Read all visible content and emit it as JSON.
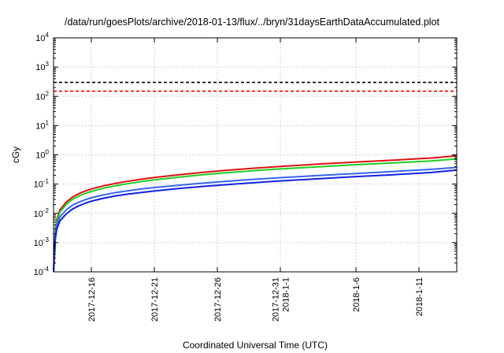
{
  "chart_data": {
    "type": "line",
    "title": "/data/run/goesPlots/archive/2018-01-13/flux/../bryn/31daysEarthDataAccumulated.plot",
    "xlabel": "Coordinated Universal Time (UTC)",
    "ylabel": "cGy",
    "yscale": "log",
    "ylim": [
      0.0001,
      10000
    ],
    "xlim": [
      "2017-12-13",
      "2018-01-14"
    ],
    "grid": true,
    "y_ticks": [
      {
        "base": "10",
        "exp": "-4",
        "value": 0.0001
      },
      {
        "base": "10",
        "exp": "-3",
        "value": 0.001
      },
      {
        "base": "10",
        "exp": "-2",
        "value": 0.01
      },
      {
        "base": "10",
        "exp": "-1",
        "value": 0.1
      },
      {
        "base": "10",
        "exp": "0",
        "value": 1
      },
      {
        "base": "10",
        "exp": "1",
        "value": 10
      },
      {
        "base": "10",
        "exp": "2",
        "value": 100
      },
      {
        "base": "10",
        "exp": "3",
        "value": 1000
      },
      {
        "base": "10",
        "exp": "4",
        "value": 10000
      }
    ],
    "x_ticks": [
      {
        "date": "2017-12-16",
        "labels": [
          "2017-12-16"
        ]
      },
      {
        "date": "2017-12-21",
        "labels": [
          "2017-12-21"
        ]
      },
      {
        "date": "2017-12-26",
        "labels": [
          "2017-12-26"
        ]
      },
      {
        "date": "2017-12-31",
        "labels": [
          "2017-12-31",
          "2018-1-1"
        ]
      },
      {
        "date": "2018-01-06",
        "labels": [
          "2018-1-6"
        ]
      },
      {
        "date": "2018-01-11",
        "labels": [
          "2018-1-11"
        ]
      }
    ],
    "reference_lines": [
      {
        "y": 300,
        "color": "#000000",
        "style": "dashed"
      },
      {
        "y": 150,
        "color": "#ff0000",
        "style": "dashed"
      }
    ],
    "series": [
      {
        "color": "#dd1111",
        "x": [
          "2017-12-13 00:00",
          "2017-12-13 03:00",
          "2017-12-13 06:00",
          "2017-12-13 12:00",
          "2017-12-14 00:00",
          "2017-12-14 12:00",
          "2017-12-15 00:00",
          "2017-12-15 12:00",
          "2017-12-16 00:00",
          "2017-12-17 00:00",
          "2017-12-18 00:00",
          "2017-12-19 00:00",
          "2017-12-20 00:00",
          "2017-12-21 00:00",
          "2017-12-23 00:00",
          "2017-12-25 00:00",
          "2017-12-27 00:00",
          "2017-12-29 00:00",
          "2017-12-31 00:00",
          "2018-01-03 00:00",
          "2018-01-06 00:00",
          "2018-01-09 00:00",
          "2018-01-12 00:00",
          "2018-01-14 00:00"
        ],
        "values": [
          0.0001,
          0.0025,
          0.006,
          0.013,
          0.024,
          0.036,
          0.047,
          0.058,
          0.068,
          0.088,
          0.107,
          0.127,
          0.147,
          0.168,
          0.21,
          0.256,
          0.304,
          0.35,
          0.4,
          0.48,
          0.57,
          0.66,
          0.78,
          0.93
        ]
      },
      {
        "color": "#22cc22",
        "x": [
          "2017-12-13 00:00",
          "2017-12-13 03:00",
          "2017-12-13 06:00",
          "2017-12-13 12:00",
          "2017-12-14 00:00",
          "2017-12-14 12:00",
          "2017-12-15 00:00",
          "2017-12-15 12:00",
          "2017-12-16 00:00",
          "2017-12-17 00:00",
          "2017-12-18 00:00",
          "2017-12-19 00:00",
          "2017-12-20 00:00",
          "2017-12-21 00:00",
          "2017-12-23 00:00",
          "2017-12-25 00:00",
          "2017-12-27 00:00",
          "2017-12-29 00:00",
          "2017-12-31 00:00",
          "2018-01-03 00:00",
          "2018-01-06 00:00",
          "2018-01-09 00:00",
          "2018-01-12 00:00",
          "2018-01-14 00:00"
        ],
        "values": [
          0.0001,
          0.0022,
          0.005,
          0.011,
          0.02,
          0.03,
          0.039,
          0.048,
          0.056,
          0.073,
          0.089,
          0.105,
          0.122,
          0.139,
          0.174,
          0.212,
          0.25,
          0.29,
          0.33,
          0.39,
          0.46,
          0.53,
          0.62,
          0.73
        ]
      },
      {
        "color": "#3366ee",
        "x": [
          "2017-12-13 00:00",
          "2017-12-13 03:00",
          "2017-12-13 06:00",
          "2017-12-13 12:00",
          "2017-12-14 00:00",
          "2017-12-14 12:00",
          "2017-12-15 00:00",
          "2017-12-15 12:00",
          "2017-12-16 00:00",
          "2017-12-17 00:00",
          "2017-12-18 00:00",
          "2017-12-19 00:00",
          "2017-12-20 00:00",
          "2017-12-21 00:00",
          "2017-12-23 00:00",
          "2017-12-25 00:00",
          "2017-12-27 00:00",
          "2017-12-29 00:00",
          "2017-12-31 00:00",
          "2018-01-03 00:00",
          "2018-01-06 00:00",
          "2018-01-09 00:00",
          "2018-01-12 00:00",
          "2018-01-14 00:00"
        ],
        "values": [
          0.0001,
          0.0016,
          0.0038,
          0.0075,
          0.013,
          0.019,
          0.024,
          0.029,
          0.034,
          0.043,
          0.052,
          0.06,
          0.068,
          0.076,
          0.092,
          0.109,
          0.127,
          0.146,
          0.166,
          0.196,
          0.23,
          0.27,
          0.32,
          0.37
        ]
      },
      {
        "color": "#1122dd",
        "x": [
          "2017-12-13 00:00",
          "2017-12-13 03:00",
          "2017-12-13 06:00",
          "2017-12-13 12:00",
          "2017-12-14 00:00",
          "2017-12-14 12:00",
          "2017-12-15 00:00",
          "2017-12-15 12:00",
          "2017-12-16 00:00",
          "2017-12-17 00:00",
          "2017-12-18 00:00",
          "2017-12-19 00:00",
          "2017-12-20 00:00",
          "2017-12-21 00:00",
          "2017-12-23 00:00",
          "2017-12-25 00:00",
          "2017-12-27 00:00",
          "2017-12-29 00:00",
          "2017-12-31 00:00",
          "2018-01-03 00:00",
          "2018-01-06 00:00",
          "2018-01-09 00:00",
          "2018-01-12 00:00",
          "2018-01-14 00:00"
        ],
        "values": [
          0.0001,
          0.0012,
          0.0028,
          0.0055,
          0.0095,
          0.014,
          0.018,
          0.022,
          0.026,
          0.033,
          0.04,
          0.046,
          0.052,
          0.058,
          0.071,
          0.084,
          0.098,
          0.113,
          0.128,
          0.152,
          0.18,
          0.21,
          0.25,
          0.3
        ]
      }
    ]
  }
}
